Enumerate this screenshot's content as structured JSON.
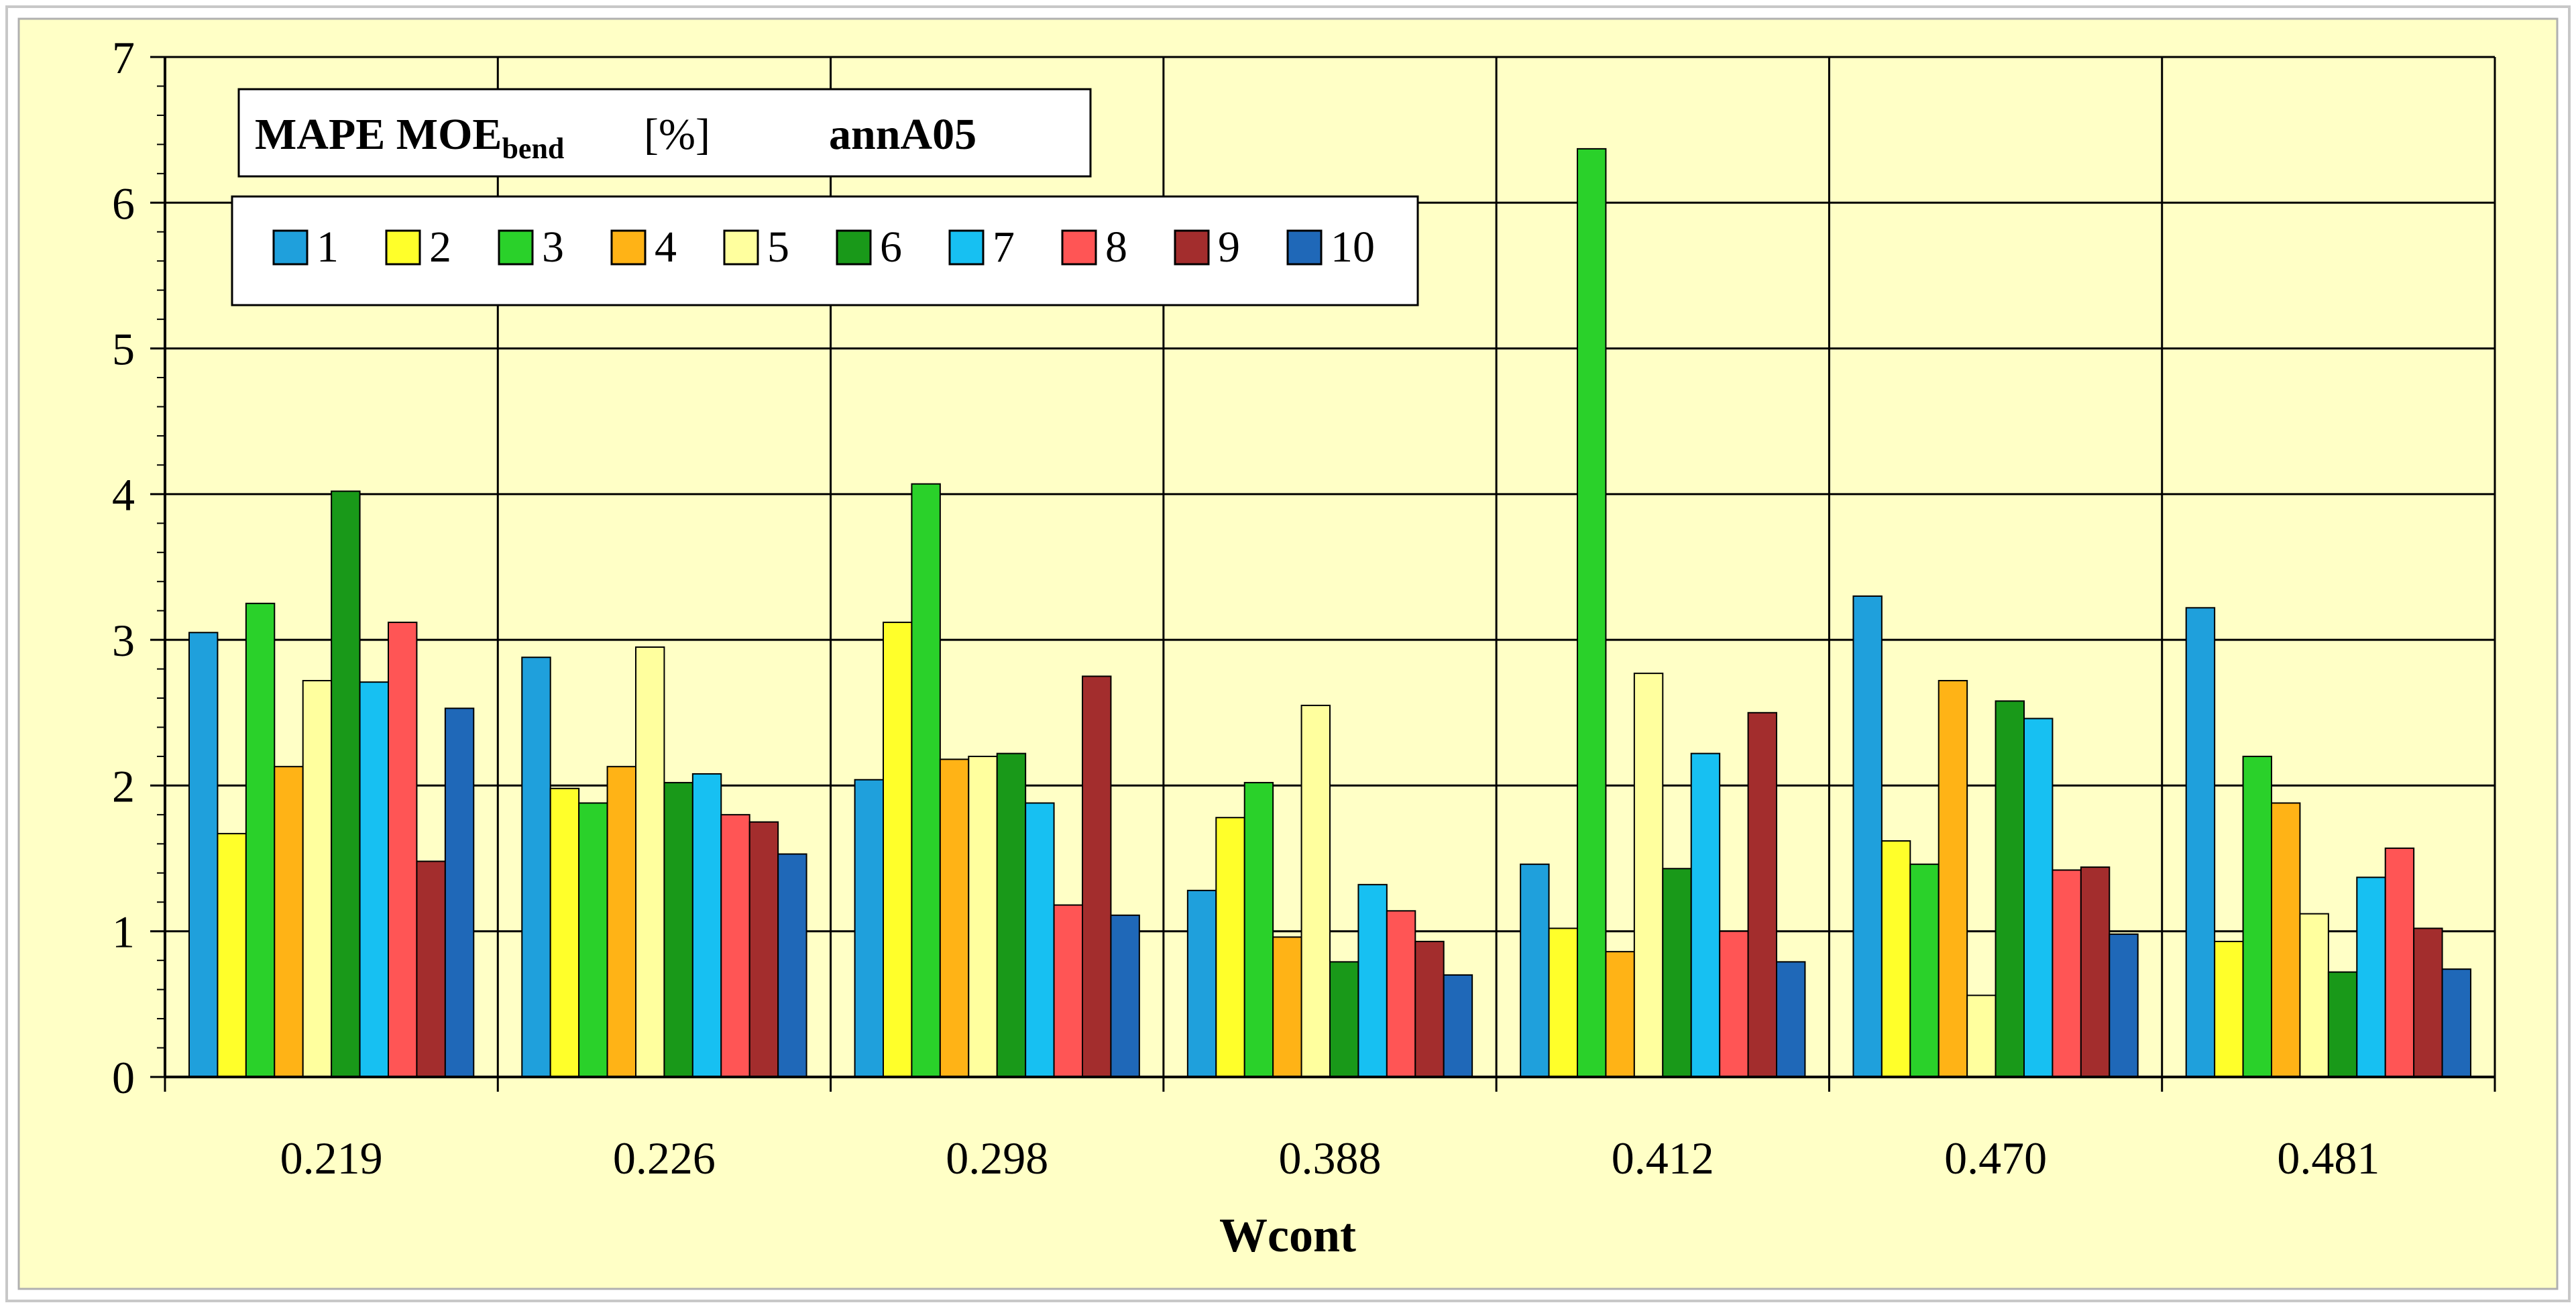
{
  "chart_data": {
    "type": "bar",
    "title_main": "MAPE MOE",
    "title_sub": "bend",
    "title_unit": "[%]",
    "title_model": "annA05",
    "xlabel": "Wcont",
    "ylabel": "",
    "ylim": [
      0,
      7
    ],
    "yticks": [
      0,
      1,
      2,
      3,
      4,
      5,
      6,
      7
    ],
    "grid": true,
    "legend_position": "top-left",
    "background_color": "#ffffc6",
    "categories": [
      "0.219",
      "0.226",
      "0.298",
      "0.388",
      "0.412",
      "0.470",
      "0.481"
    ],
    "series": [
      {
        "name": "1",
        "color": "#1fa0dc",
        "values": [
          3.05,
          2.88,
          2.04,
          1.28,
          1.46,
          3.3,
          3.22
        ]
      },
      {
        "name": "2",
        "color": "#ffff2a",
        "values": [
          1.67,
          1.98,
          3.12,
          1.78,
          1.02,
          1.62,
          0.93
        ]
      },
      {
        "name": "3",
        "color": "#2ad12a",
        "values": [
          3.25,
          1.88,
          4.07,
          2.02,
          6.37,
          1.46,
          2.2
        ]
      },
      {
        "name": "4",
        "color": "#ffb316",
        "values": [
          2.13,
          2.13,
          2.18,
          0.96,
          0.86,
          2.72,
          1.88
        ]
      },
      {
        "name": "5",
        "color": "#ffff9e",
        "values": [
          2.72,
          2.95,
          2.2,
          2.55,
          2.77,
          0.56,
          1.12
        ]
      },
      {
        "name": "6",
        "color": "#199919",
        "values": [
          4.02,
          2.02,
          2.22,
          0.79,
          1.43,
          2.58,
          0.72
        ]
      },
      {
        "name": "7",
        "color": "#17c0f2",
        "values": [
          2.71,
          2.08,
          1.88,
          1.32,
          2.22,
          2.46,
          1.37
        ]
      },
      {
        "name": "8",
        "color": "#ff5555",
        "values": [
          3.12,
          1.8,
          1.18,
          1.14,
          1.0,
          1.42,
          1.57
        ]
      },
      {
        "name": "9",
        "color": "#a32d2d",
        "values": [
          1.48,
          1.75,
          2.75,
          0.93,
          2.5,
          1.44,
          1.02
        ]
      },
      {
        "name": "10",
        "color": "#1f68b8",
        "values": [
          2.53,
          1.53,
          1.11,
          0.7,
          0.79,
          0.98,
          0.74
        ]
      }
    ]
  }
}
